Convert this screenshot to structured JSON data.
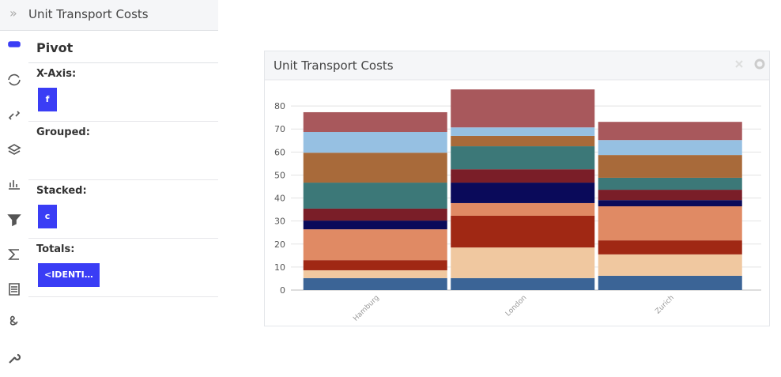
{
  "header": {
    "title": "Unit Transport Costs"
  },
  "pivot": {
    "title": "Pivot",
    "sections": [
      {
        "label": "X-Axis:",
        "chips": [
          "f"
        ]
      },
      {
        "label": "Grouped:"
      },
      {
        "label": "Stacked:",
        "chips": [
          "c"
        ]
      },
      {
        "label": "Totals:",
        "chips": [
          "<IDENTI…"
        ]
      }
    ]
  },
  "chart_data": {
    "type": "stacked_bar",
    "title": "Unit Transport Costs",
    "categories": [
      "Hamburg",
      "London",
      "Zurich"
    ],
    "series": [
      {
        "color": "#3b6496",
        "values": [
          5.2,
          5.2,
          6.2
        ]
      },
      {
        "color": "#f0c8a0",
        "values": [
          3.4,
          13.3,
          9.3
        ]
      },
      {
        "color": "#a02814",
        "values": [
          4.4,
          13.8,
          6.1
        ]
      },
      {
        "color": "#e08a64",
        "values": [
          13.4,
          5.5,
          14.8
        ]
      },
      {
        "color": "#0a0a5a",
        "values": [
          3.8,
          8.9,
          2.7
        ]
      },
      {
        "color": "#7a1e28",
        "values": [
          5.2,
          5.8,
          4.5
        ]
      },
      {
        "color": "#3c7878",
        "values": [
          11.3,
          10.0,
          5.2
        ]
      },
      {
        "color": "#a86a3a",
        "values": [
          13.0,
          4.5,
          9.9
        ]
      },
      {
        "color": "#96c0e2",
        "values": [
          9.0,
          3.7,
          6.5
        ]
      },
      {
        "color": "#a8585c",
        "values": [
          8.6,
          16.5,
          7.9
        ]
      }
    ],
    "ylim": [
      0,
      90
    ],
    "yticks": [
      0,
      10,
      20,
      30,
      40,
      50,
      60,
      70,
      80
    ],
    "grid": true
  }
}
